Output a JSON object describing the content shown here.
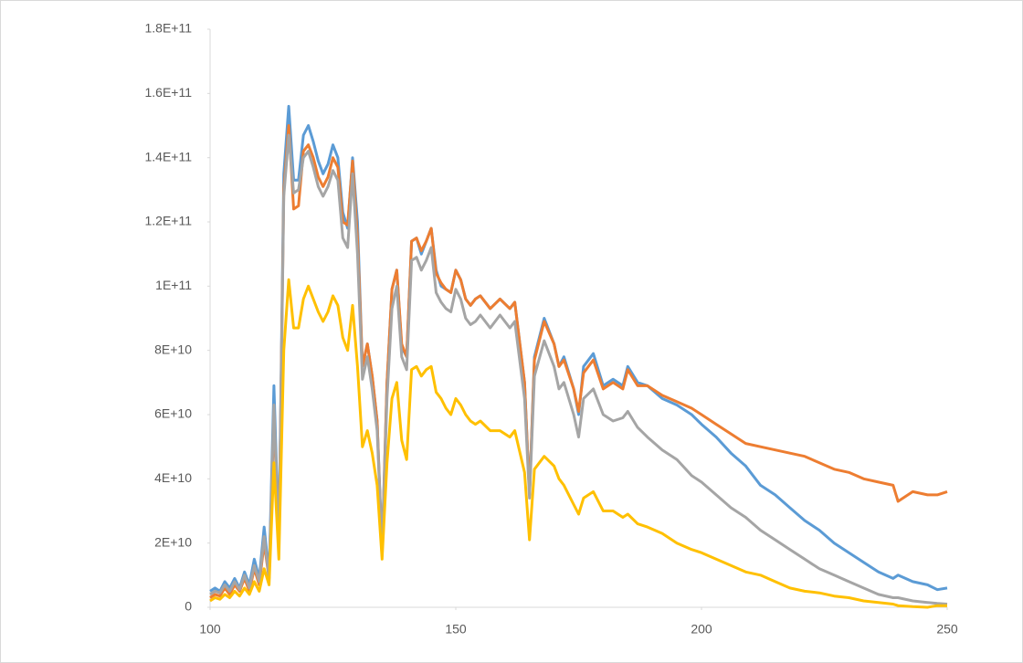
{
  "chart_data": {
    "type": "line",
    "x": [
      100,
      101,
      102,
      103,
      104,
      105,
      106,
      107,
      108,
      109,
      110,
      111,
      112,
      113,
      114,
      115,
      116,
      117,
      118,
      119,
      120,
      121,
      122,
      123,
      124,
      125,
      126,
      127,
      128,
      129,
      130,
      131,
      132,
      133,
      134,
      135,
      136,
      137,
      138,
      139,
      140,
      141,
      142,
      143,
      144,
      145,
      146,
      147,
      148,
      149,
      150,
      151,
      152,
      153,
      154,
      155,
      157,
      159,
      161,
      162,
      164,
      165,
      166,
      168,
      170,
      171,
      172,
      174,
      175,
      176,
      178,
      180,
      182,
      184,
      185,
      187,
      189,
      192,
      195,
      198,
      200,
      203,
      206,
      209,
      212,
      215,
      218,
      221,
      224,
      227,
      230,
      233,
      236,
      239,
      240,
      243,
      246,
      248,
      250
    ],
    "series": [
      {
        "color": "#5b9bd5",
        "values": [
          5000000000.0,
          6000000000.0,
          5000000000.0,
          8000000000.0,
          6000000000.0,
          9000000000.0,
          6000000000.0,
          11000000000.0,
          7000000000.0,
          15000000000.0,
          9000000000.0,
          25000000000.0,
          10000000000.0,
          69000000000.0,
          20000000000.0,
          135000000000.0,
          156000000000.0,
          133000000000.0,
          133000000000.0,
          147000000000.0,
          150000000000.0,
          145000000000.0,
          139000000000.0,
          135000000000.0,
          138000000000.0,
          144000000000.0,
          140000000000.0,
          123000000000.0,
          118000000000.0,
          140000000000.0,
          120000000000.0,
          75000000000.0,
          82000000000.0,
          72000000000.0,
          58000000000.0,
          18000000000.0,
          70000000000.0,
          99000000000.0,
          105000000000.0,
          81000000000.0,
          78000000000.0,
          114000000000.0,
          115000000000.0,
          110000000000.0,
          114000000000.0,
          118000000000.0,
          105000000000.0,
          100000000000.0,
          99000000000.0,
          98000000000.0,
          105000000000.0,
          102000000000.0,
          96000000000.0,
          94000000000.0,
          96000000000.0,
          97000000000.0,
          93000000000.0,
          96000000000.0,
          93000000000.0,
          95000000000.0,
          70000000000.0,
          35000000000.0,
          78000000000.0,
          90000000000.0,
          82000000000.0,
          75000000000.0,
          78000000000.0,
          68000000000.0,
          60000000000.0,
          75000000000.0,
          79000000000.0,
          69000000000.0,
          71000000000.0,
          69000000000.0,
          75000000000.0,
          70000000000.0,
          69000000000.0,
          65000000000.0,
          63000000000.0,
          60000000000.0,
          57000000000.0,
          53000000000.0,
          48000000000.0,
          44000000000.0,
          38000000000.0,
          35000000000.0,
          31000000000.0,
          27000000000.0,
          24000000000.0,
          20000000000.0,
          17000000000.0,
          14000000000.0,
          11000000000.0,
          9000000000.0,
          10000000000.0,
          8000000000.0,
          7000000000.0,
          5500000000.0,
          6000000000.0
        ]
      },
      {
        "color": "#ed7d31",
        "values": [
          3000000000.0,
          4000000000.0,
          3500000000.0,
          6000000000.0,
          4000000000.0,
          7000000000.0,
          5000000000.0,
          9000000000.0,
          5000000000.0,
          12000000000.0,
          7000000000.0,
          20000000000.0,
          9000000000.0,
          60000000000.0,
          18000000000.0,
          130000000000.0,
          150000000000.0,
          124000000000.0,
          125000000000.0,
          142000000000.0,
          144000000000.0,
          140000000000.0,
          134000000000.0,
          131000000000.0,
          134000000000.0,
          140000000000.0,
          137000000000.0,
          120000000000.0,
          119000000000.0,
          139000000000.0,
          115000000000.0,
          75000000000.0,
          82000000000.0,
          72000000000.0,
          58000000000.0,
          16000000000.0,
          70000000000.0,
          99000000000.0,
          105000000000.0,
          82000000000.0,
          78000000000.0,
          114000000000.0,
          115000000000.0,
          111000000000.0,
          114000000000.0,
          118000000000.0,
          104000000000.0,
          101000000000.0,
          99000000000.0,
          98000000000.0,
          105000000000.0,
          102000000000.0,
          96000000000.0,
          94000000000.0,
          96000000000.0,
          97000000000.0,
          93000000000.0,
          96000000000.0,
          93000000000.0,
          95000000000.0,
          70000000000.0,
          35000000000.0,
          77000000000.0,
          89000000000.0,
          82000000000.0,
          75000000000.0,
          77000000000.0,
          68000000000.0,
          61000000000.0,
          73000000000.0,
          77000000000.0,
          68000000000.0,
          70000000000.0,
          68000000000.0,
          74000000000.0,
          69000000000.0,
          69000000000.0,
          66000000000.0,
          64000000000.0,
          62000000000.0,
          60000000000.0,
          57000000000.0,
          54000000000.0,
          51000000000.0,
          50000000000.0,
          49000000000.0,
          48000000000.0,
          47000000000.0,
          45000000000.0,
          43000000000.0,
          42000000000.0,
          40000000000.0,
          39000000000.0,
          38000000000.0,
          33000000000.0,
          36000000000.0,
          35000000000.0,
          35000000000.0,
          36000000000.0
        ]
      },
      {
        "color": "#a5a5a5",
        "values": [
          4000000000.0,
          5000000000.0,
          4500000000.0,
          7000000000.0,
          5000000000.0,
          8000000000.0,
          5500000000.0,
          10000000000.0,
          6000000000.0,
          13000000000.0,
          8000000000.0,
          22000000000.0,
          9000000000.0,
          63000000000.0,
          18000000000.0,
          128000000000.0,
          147000000000.0,
          129000000000.0,
          130000000000.0,
          140000000000.0,
          142000000000.0,
          137000000000.0,
          131000000000.0,
          128000000000.0,
          131000000000.0,
          136000000000.0,
          133000000000.0,
          115000000000.0,
          112000000000.0,
          135000000000.0,
          110000000000.0,
          71000000000.0,
          78000000000.0,
          68000000000.0,
          55000000000.0,
          18000000000.0,
          65000000000.0,
          93000000000.0,
          100000000000.0,
          78000000000.0,
          74000000000.0,
          108000000000.0,
          109000000000.0,
          105000000000.0,
          108000000000.0,
          112000000000.0,
          98000000000.0,
          95000000000.0,
          93000000000.0,
          92000000000.0,
          99000000000.0,
          96000000000.0,
          90000000000.0,
          88000000000.0,
          89000000000.0,
          91000000000.0,
          87000000000.0,
          91000000000.0,
          87000000000.0,
          89000000000.0,
          65000000000.0,
          34000000000.0,
          72000000000.0,
          83000000000.0,
          75000000000.0,
          68000000000.0,
          70000000000.0,
          60000000000.0,
          53000000000.0,
          65000000000.0,
          68000000000.0,
          60000000000.0,
          58000000000.0,
          59000000000.0,
          61000000000.0,
          56000000000.0,
          53000000000.0,
          49000000000.0,
          46000000000.0,
          41000000000.0,
          39000000000.0,
          35000000000.0,
          31000000000.0,
          28000000000.0,
          24000000000.0,
          21000000000.0,
          18000000000.0,
          15000000000.0,
          12000000000.0,
          10000000000.0,
          8000000000.0,
          6000000000.0,
          4000000000.0,
          3000000000.0,
          3000000000.0,
          2000000000.0,
          1500000000.0,
          1200000000.0,
          1000000000.0
        ]
      },
      {
        "color": "#ffc000",
        "values": [
          2000000000.0,
          3000000000.0,
          2500000000.0,
          4000000000.0,
          3000000000.0,
          5000000000.0,
          3500000000.0,
          6000000000.0,
          4000000000.0,
          8000000000.0,
          5000000000.0,
          12000000000.0,
          7000000000.0,
          45000000000.0,
          15000000000.0,
          80000000000.0,
          102000000000.0,
          87000000000.0,
          87000000000.0,
          96000000000.0,
          100000000000.0,
          96000000000.0,
          92000000000.0,
          89000000000.0,
          92000000000.0,
          97000000000.0,
          94000000000.0,
          84000000000.0,
          80000000000.0,
          94000000000.0,
          75000000000.0,
          50000000000.0,
          55000000000.0,
          48000000000.0,
          38000000000.0,
          15000000000.0,
          45000000000.0,
          65000000000.0,
          70000000000.0,
          52000000000.0,
          46000000000.0,
          74000000000.0,
          75000000000.0,
          72000000000.0,
          74000000000.0,
          75000000000.0,
          67000000000.0,
          65000000000.0,
          62000000000.0,
          60000000000.0,
          65000000000.0,
          63000000000.0,
          60000000000.0,
          58000000000.0,
          57000000000.0,
          58000000000.0,
          55000000000.0,
          55000000000.0,
          53000000000.0,
          55000000000.0,
          42000000000.0,
          21000000000.0,
          43000000000.0,
          47000000000.0,
          44000000000.0,
          40000000000.0,
          38000000000.0,
          32000000000.0,
          29000000000.0,
          34000000000.0,
          36000000000.0,
          30000000000.0,
          30000000000.0,
          28000000000.0,
          29000000000.0,
          26000000000.0,
          25000000000.0,
          23000000000.0,
          20000000000.0,
          18000000000.0,
          17000000000.0,
          15000000000.0,
          13000000000.0,
          11000000000.0,
          10000000000.0,
          8000000000.0,
          6000000000.0,
          5000000000.0,
          4500000000.0,
          3500000000.0,
          3000000000.0,
          2000000000.0,
          1500000000.0,
          1000000000.0,
          500000000.0,
          200000000.0,
          0.0,
          500000000.0,
          500000000.0
        ]
      }
    ],
    "xlim": [
      100,
      250
    ],
    "xticks": [
      100,
      150,
      200,
      250
    ],
    "ylim": [
      0,
      180000000000.0
    ],
    "yticks": [
      0,
      {
        "value": 20000000000.0,
        "label": "2E+10"
      },
      {
        "value": 40000000000.0,
        "label": "4E+10"
      },
      {
        "value": 60000000000.0,
        "label": "6E+10"
      },
      {
        "value": 80000000000.0,
        "label": "8E+10"
      },
      {
        "value": 100000000000.0,
        "label": "1E+11"
      },
      {
        "value": 120000000000.0,
        "label": "1.2E+11"
      },
      {
        "value": 140000000000.0,
        "label": "1.4E+11"
      },
      {
        "value": 160000000000.0,
        "label": "1.6E+11"
      },
      {
        "value": 180000000000.0,
        "label": "1.8E+11"
      }
    ]
  }
}
